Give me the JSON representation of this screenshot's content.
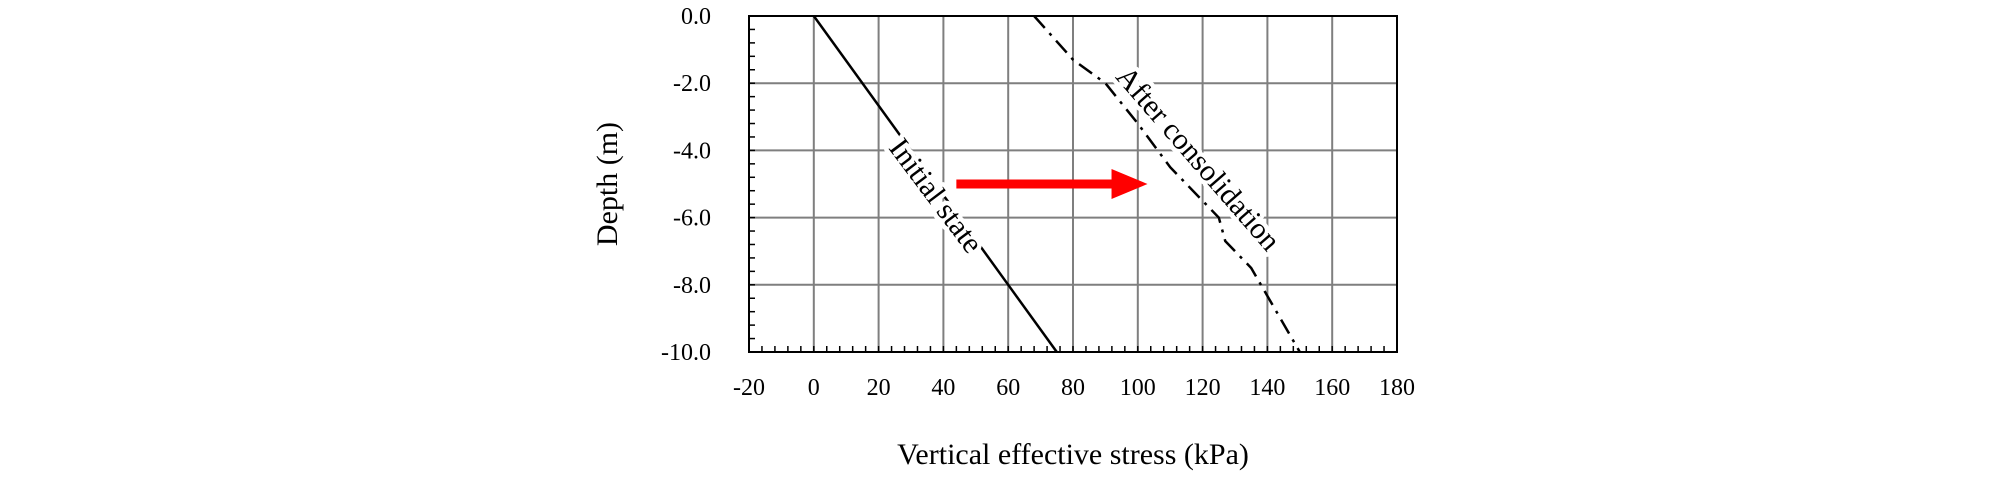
{
  "chart_data": {
    "type": "line",
    "title": "",
    "xlabel": "Vertical effective stress (kPa)",
    "ylabel": "Depth (m)",
    "xlim": [
      -20,
      180
    ],
    "ylim": [
      -10,
      0
    ],
    "x_ticks": [
      -20,
      0,
      20,
      40,
      60,
      80,
      100,
      120,
      140,
      160,
      180
    ],
    "x_tick_labels": [
      "-20",
      "0",
      "20",
      "40",
      "60",
      "80",
      "100",
      "120",
      "140",
      "160",
      "180"
    ],
    "y_ticks": [
      0,
      -2,
      -4,
      -6,
      -8,
      -10
    ],
    "y_tick_labels": [
      "0.0",
      "-2.0",
      "-4.0",
      "-6.0",
      "-8.0",
      "-10.0"
    ],
    "grid": true,
    "series": [
      {
        "label": "Initial state",
        "style": "solid",
        "color": "#000000",
        "points": [
          [
            0,
            0
          ],
          [
            60,
            -8
          ],
          [
            75,
            -10
          ]
        ]
      },
      {
        "label": "After consolidation",
        "style": "dash-dot",
        "color": "#000000",
        "points": [
          [
            68,
            0
          ],
          [
            80,
            -1.3
          ],
          [
            90,
            -2
          ],
          [
            100,
            -3.2
          ],
          [
            110,
            -4.5
          ],
          [
            125,
            -6
          ],
          [
            127,
            -6.7
          ],
          [
            135,
            -7.5
          ],
          [
            150,
            -10
          ]
        ]
      }
    ],
    "annotations": [
      {
        "text": "Initial state",
        "x": 37,
        "y": -5.4,
        "angle": 53
      },
      {
        "text": "After consolidation",
        "x": 118,
        "y": -4.3,
        "angle": 49
      }
    ],
    "arrow": {
      "from": [
        44,
        -5
      ],
      "to": [
        103,
        -5
      ],
      "color": "#ff0000"
    }
  }
}
